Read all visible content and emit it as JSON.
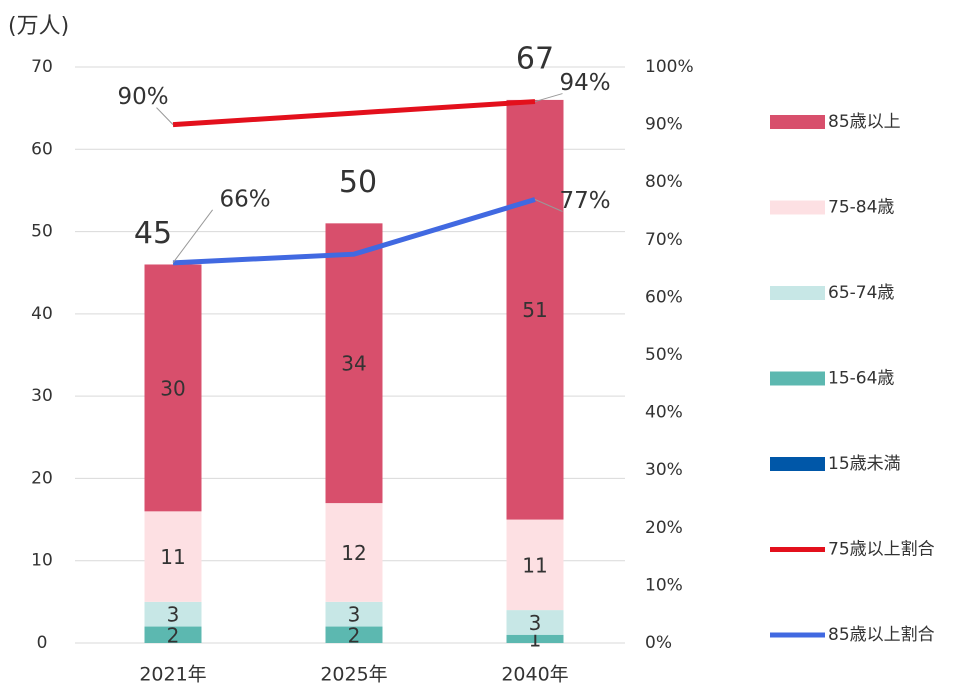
{
  "chart_data": {
    "type": "bar",
    "y_label": "(万人)",
    "categories": [
      "2021年",
      "2025年",
      "2040年"
    ],
    "totals": [
      45,
      50,
      67
    ],
    "series": [
      {
        "name": "15歳未満",
        "color": "#0057a8",
        "values": [
          0,
          0,
          0
        ]
      },
      {
        "name": "15-64歳",
        "color": "#5cb8b0",
        "values": [
          2,
          2,
          1
        ]
      },
      {
        "name": "65-74歳",
        "color": "#c7e7e6",
        "values": [
          3,
          3,
          3
        ]
      },
      {
        "name": "75-84歳",
        "color": "#fde0e3",
        "values": [
          11,
          12,
          11
        ]
      },
      {
        "name": "85歳以上",
        "color": "#d84f6c",
        "values": [
          30,
          34,
          51
        ]
      },
      {
        "name": "75歳以上割合",
        "type": "line",
        "axis": "y2",
        "color": "#e3101c",
        "values": [
          90,
          92,
          94
        ],
        "value_labels": [
          "90%",
          null,
          "94%"
        ]
      },
      {
        "name": "85歳以上割合",
        "type": "line",
        "axis": "y2",
        "color": "#4169e1",
        "values": [
          66,
          67.5,
          77
        ],
        "value_labels": [
          "66%",
          null,
          "77%"
        ]
      }
    ],
    "ylim": [
      0,
      70
    ],
    "yticks": [
      0,
      10,
      20,
      30,
      40,
      50,
      60,
      70
    ],
    "y2lim": [
      0,
      100
    ],
    "y2ticks": [
      {
        "value": 0,
        "label": "0%"
      },
      {
        "value": 10,
        "label": "10%"
      },
      {
        "value": 20,
        "label": "20%"
      },
      {
        "value": 30,
        "label": "30%"
      },
      {
        "value": 40,
        "label": "40%"
      },
      {
        "value": 50,
        "label": "50%"
      },
      {
        "value": 60,
        "label": "60%"
      },
      {
        "value": 70,
        "label": "70%"
      },
      {
        "value": 80,
        "label": "80%"
      },
      {
        "value": 90,
        "label": "90%"
      },
      {
        "value": 100,
        "label": "100%"
      }
    ],
    "grid": true
  }
}
